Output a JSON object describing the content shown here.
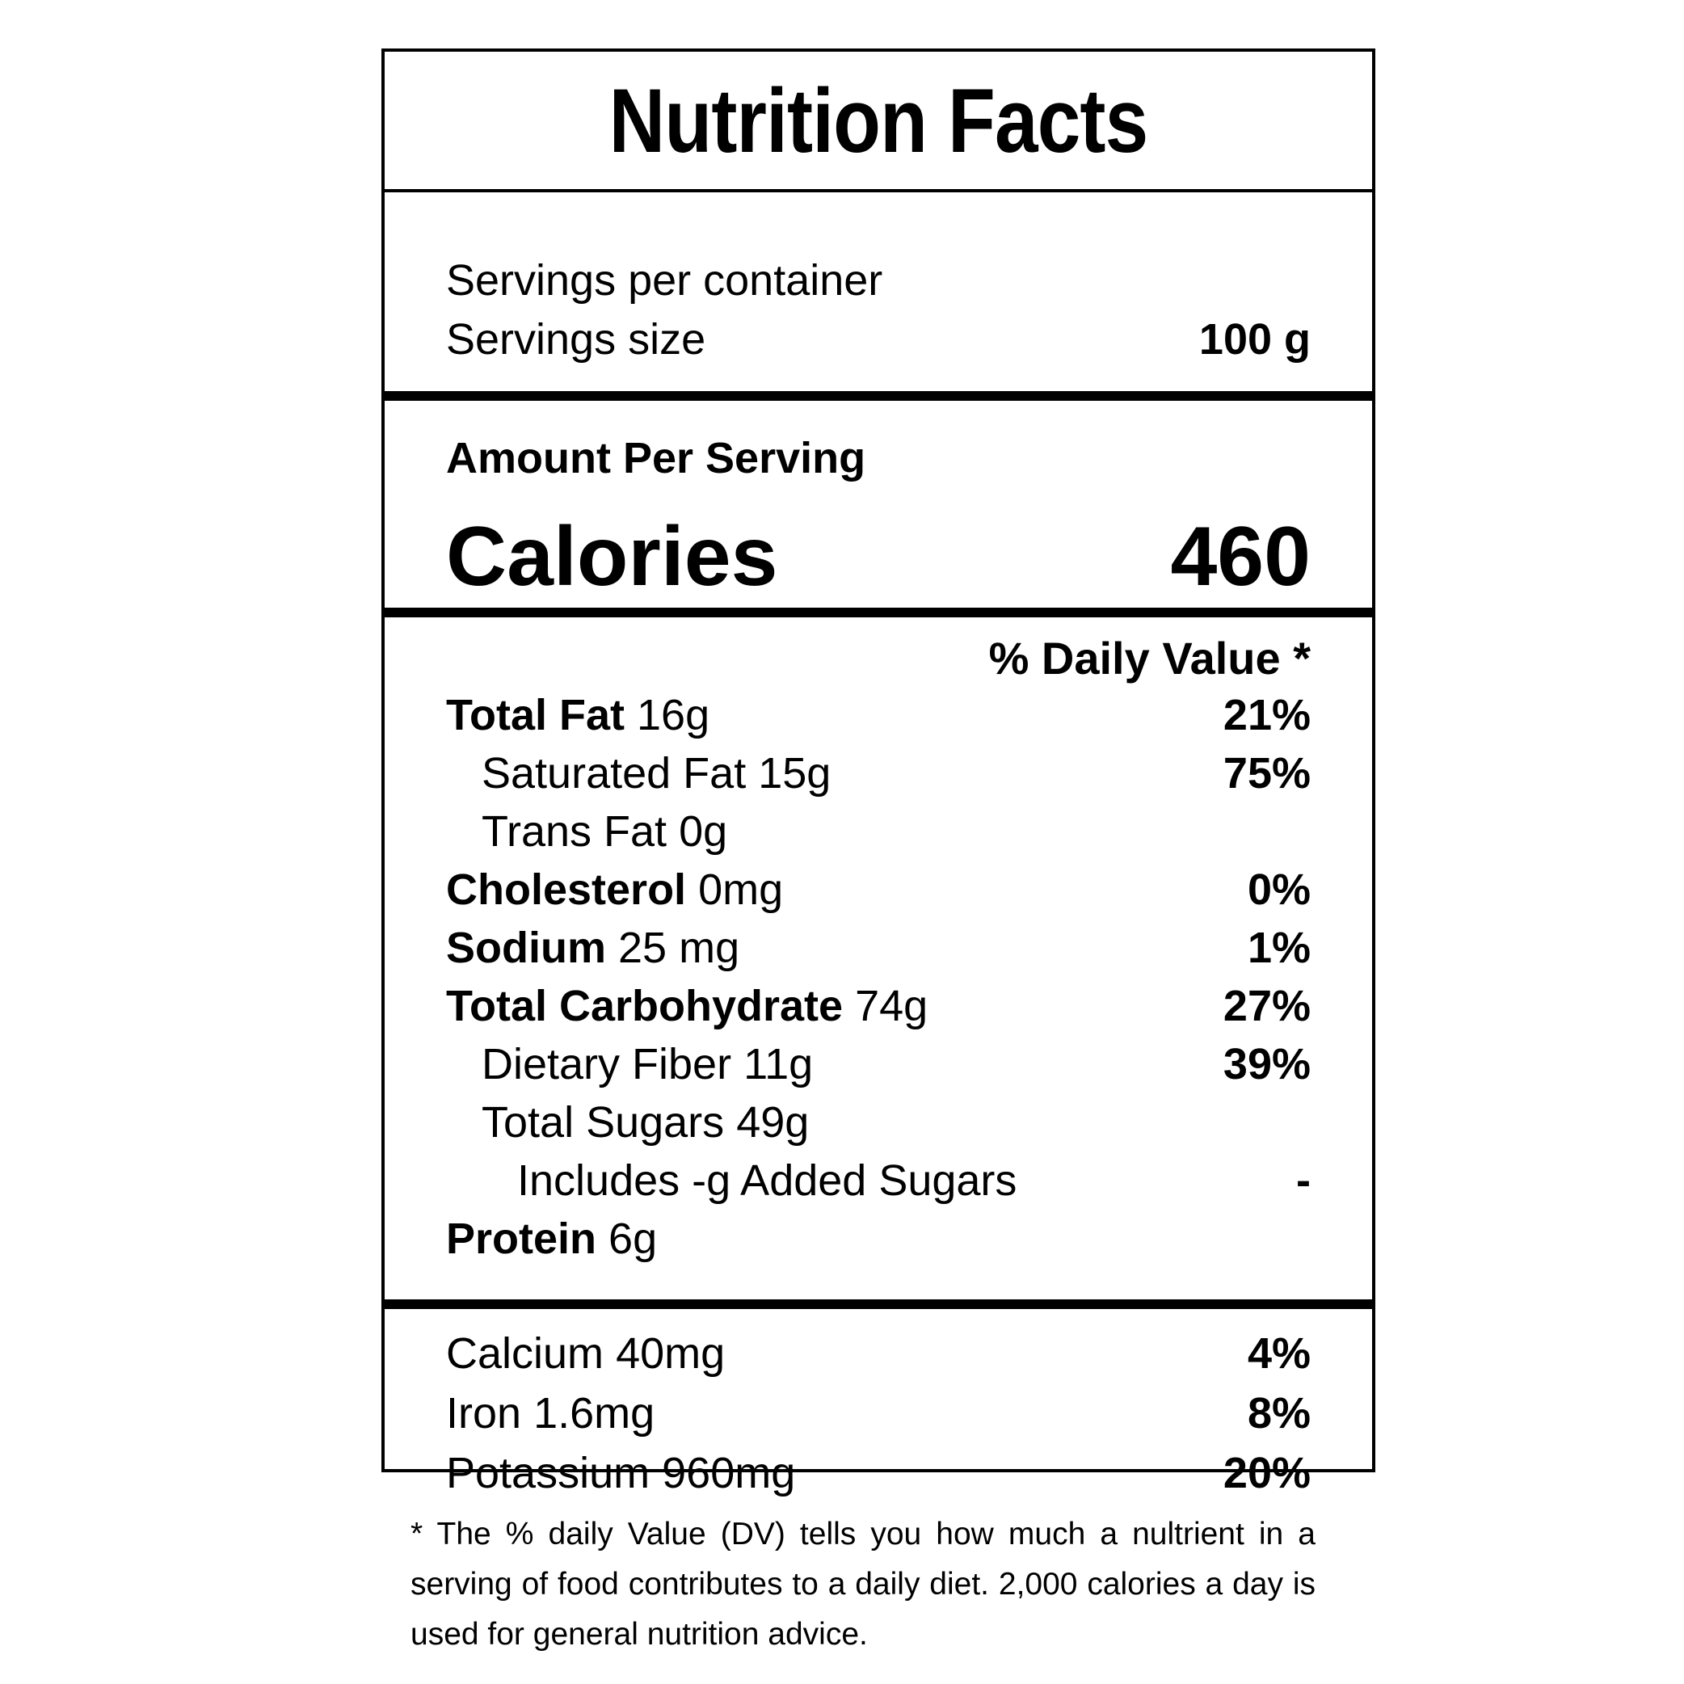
{
  "title": "Nutrition Facts",
  "servings": {
    "per_container_label": "Servings per container",
    "per_container_value": "",
    "size_label": "Servings size",
    "size_value": "100 g"
  },
  "amount_per_serving": "Amount Per Serving",
  "calories": {
    "label": "Calories",
    "value": "460"
  },
  "daily_value_header": "% Daily Value *",
  "nutrients": [
    {
      "name": "Total Fat",
      "amount": "16g",
      "dv": "21%"
    },
    {
      "name": "Saturated Fat",
      "amount": "15g",
      "dv": "75%"
    },
    {
      "name": "Trans Fat",
      "amount": "0g",
      "dv": ""
    },
    {
      "name": "Cholesterol",
      "amount": "0mg",
      "dv": "0%"
    },
    {
      "name": "Sodium",
      "amount": "25 mg",
      "dv": "1%"
    },
    {
      "name": "Total Carbohydrate",
      "amount": "74g",
      "dv": "27%"
    },
    {
      "name": "Dietary Fiber",
      "amount": "11g",
      "dv": "39%"
    },
    {
      "name": "Total Sugars",
      "amount": "49g",
      "dv": ""
    },
    {
      "name": "Includes -g Added Sugars",
      "amount": "",
      "dv": "-"
    },
    {
      "name": "Protein",
      "amount": "6g",
      "dv": ""
    }
  ],
  "minerals": [
    {
      "name": "Calcium",
      "amount": "40mg",
      "dv": "4%"
    },
    {
      "name": "Iron",
      "amount": "1.6mg",
      "dv": "8%"
    },
    {
      "name": "Potassium",
      "amount": "960mg",
      "dv": "20%"
    }
  ],
  "footnote": "* The % daily Value (DV) tells you how much a nultrient in a serving of food contributes to a daily diet. 2,000 calories a day is used for general nutrition advice."
}
